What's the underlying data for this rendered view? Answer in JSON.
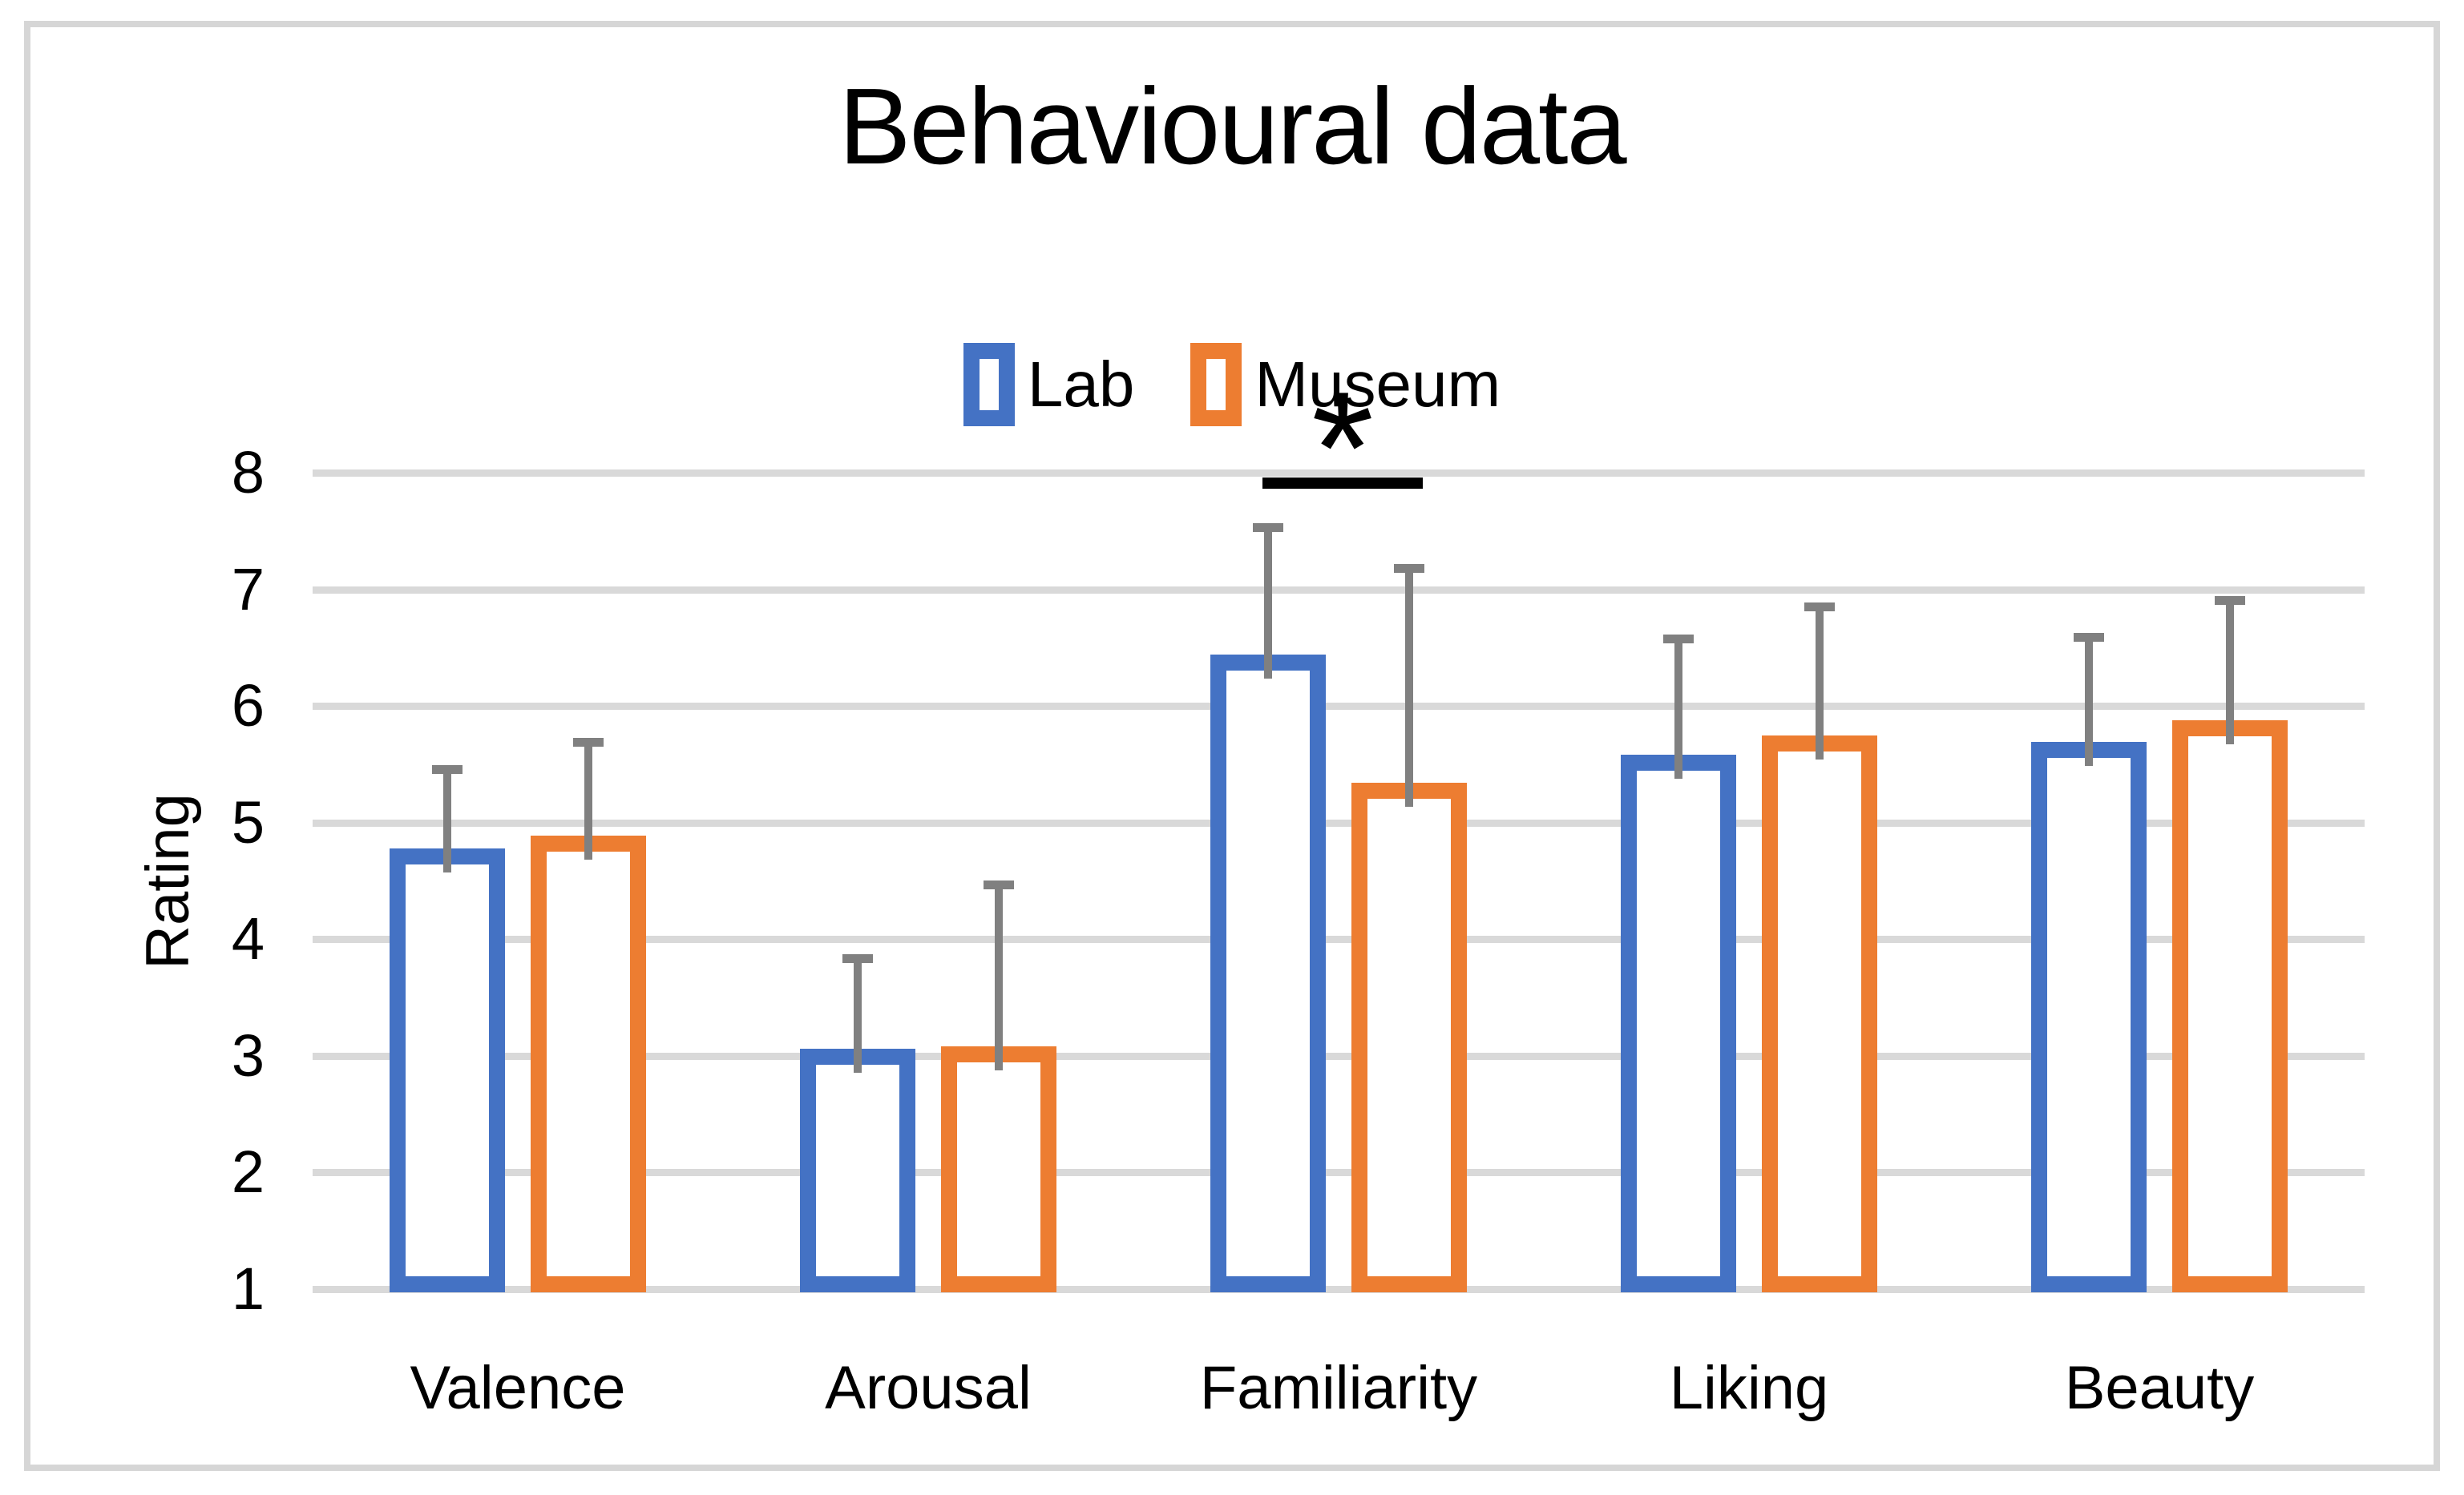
{
  "chart_data": {
    "type": "bar",
    "title": "Behavioural data",
    "ylabel": "Rating",
    "xlabel": "",
    "categories": [
      "Valence",
      "Arousal",
      "Familiarity",
      "Liking",
      "Beauty"
    ],
    "series": [
      {
        "name": "Lab",
        "color": "#4472C4",
        "values": [
          4.78,
          3.06,
          6.44,
          5.58,
          5.69
        ],
        "errors_plus": [
          0.68,
          0.78,
          1.09,
          1.0,
          0.9
        ]
      },
      {
        "name": "Museum",
        "color": "#ED7D31",
        "values": [
          4.89,
          3.08,
          5.34,
          5.75,
          5.88
        ],
        "errors_plus": [
          0.8,
          1.39,
          1.84,
          1.1,
          1.03
        ]
      }
    ],
    "ylim": [
      1,
      8
    ],
    "yticks": [
      1,
      2,
      3,
      4,
      5,
      6,
      7,
      8
    ],
    "grid": true,
    "legend_position": "top-center",
    "legend_labels": [
      "Lab",
      "Museum"
    ],
    "error_bar_color": "#808080",
    "gridline_color": "#D9D9D9",
    "frame_color": "#D6D6D6",
    "significance": {
      "category": "Familiarity",
      "between": [
        "Lab",
        "Museum"
      ],
      "label": "*"
    }
  }
}
